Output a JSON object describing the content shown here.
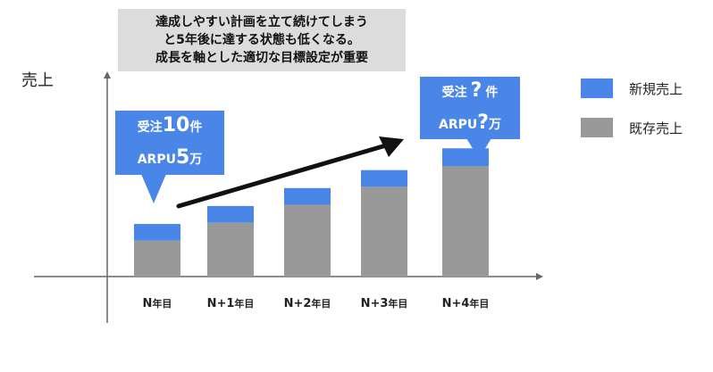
{
  "note": {
    "lines": [
      "達成しやすい計画を立て続けてしまう",
      "と5年後に達する状態も低くなる。",
      "成長を軸とした適切な目標設定が重要"
    ]
  },
  "chart_data": {
    "type": "bar",
    "stacked": true,
    "ylabel": "売上",
    "categories": [
      "N年目",
      "N+1年目",
      "N+2年目",
      "N+3年目",
      "N+4年目"
    ],
    "series": [
      {
        "name": "既存売上",
        "color": "#999999",
        "values": [
          28,
          42,
          56,
          70,
          86
        ]
      },
      {
        "name": "新規売上",
        "color": "#4a86e8",
        "values": [
          13,
          13,
          13,
          13,
          14
        ]
      }
    ],
    "ylim": [
      0,
      160
    ],
    "grid": false,
    "legend_position": "right",
    "annotations": {
      "left_bubble": {
        "line1": [
          "受注",
          "10",
          "件"
        ],
        "line2": [
          "ARPU",
          "5",
          "万"
        ]
      },
      "right_bubble": {
        "line1": [
          "受注",
          "?",
          "件"
        ],
        "line2": [
          "ARPU",
          "?",
          "万"
        ]
      }
    }
  }
}
